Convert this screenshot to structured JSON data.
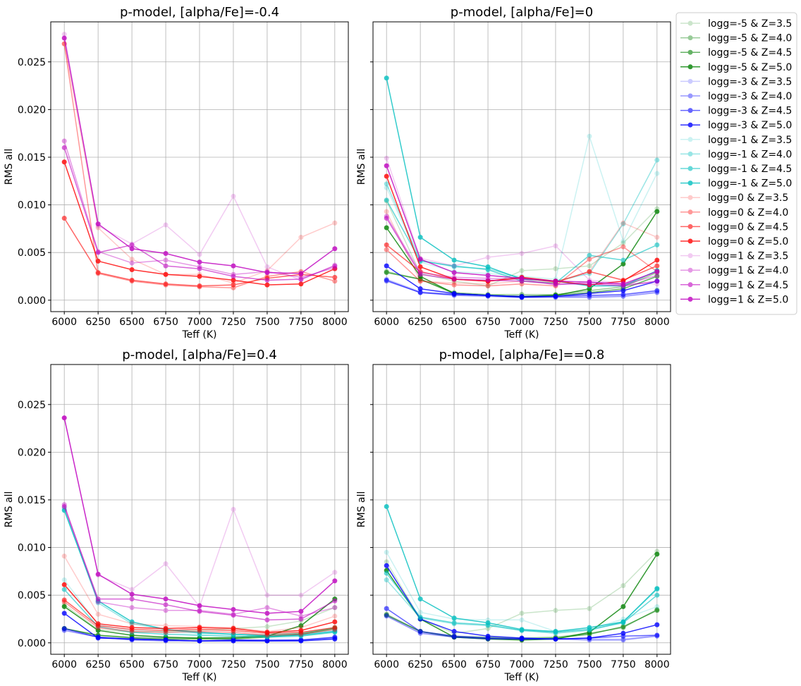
{
  "chart_data": [
    {
      "type": "line",
      "title": "p-model, [alpha/Fe]=-0.4",
      "xlabel": "Teff (K)",
      "ylabel": "RMS all",
      "x": [
        6000,
        6250,
        6500,
        6750,
        7000,
        7250,
        7500,
        7750,
        8000
      ],
      "xlim": [
        5900,
        8100
      ],
      "ylim": [
        -0.0012,
        0.0292
      ],
      "grid": true,
      "series": [
        {
          "name": "logg=0 & Z=3.5",
          "values": [
            0.0269,
            0.0076,
            0.0043,
            0.0027,
            0.0027,
            0.0018,
            0.0031,
            0.0066,
            0.0081
          ]
        },
        {
          "name": "logg=0 & Z=4.0",
          "values": [
            0.0269,
            0.0028,
            0.002,
            0.0016,
            0.0014,
            0.0013,
            0.0025,
            0.003,
            0.002
          ]
        },
        {
          "name": "logg=0 & Z=4.5",
          "values": [
            0.0086,
            0.0029,
            0.0021,
            0.0017,
            0.0015,
            0.0016,
            0.0023,
            0.0027,
            0.0024
          ]
        },
        {
          "name": "logg=0 & Z=5.0",
          "values": [
            0.0145,
            0.0041,
            0.0032,
            0.0027,
            0.0025,
            0.0021,
            0.0016,
            0.0017,
            0.0033
          ]
        },
        {
          "name": "logg=1 & Z=3.5",
          "values": [
            0.0279,
            0.0078,
            0.0059,
            0.0079,
            0.0048,
            0.0109,
            0.0035,
            0.0021,
            0.0037
          ]
        },
        {
          "name": "logg=1 & Z=4.0",
          "values": [
            0.0167,
            0.0051,
            0.0039,
            0.0042,
            0.0035,
            0.0027,
            0.003,
            0.0024,
            0.0034
          ]
        },
        {
          "name": "logg=1 & Z=4.5",
          "values": [
            0.016,
            0.005,
            0.0058,
            0.0036,
            0.0033,
            0.0025,
            0.0021,
            0.0022,
            0.0036
          ]
        },
        {
          "name": "logg=1 & Z=5.0",
          "values": [
            0.0275,
            0.008,
            0.0054,
            0.0049,
            0.004,
            0.0036,
            0.0029,
            0.0028,
            0.0054
          ]
        }
      ]
    },
    {
      "type": "line",
      "title": "p-model, [alpha/Fe]=0",
      "xlabel": "Teff (K)",
      "ylabel": "RMS all",
      "x": [
        6000,
        6250,
        6500,
        6750,
        7000,
        7250,
        7500,
        7750,
        8000
      ],
      "xlim": [
        5900,
        8100
      ],
      "ylim": [
        -0.0012,
        0.0292
      ],
      "grid": true,
      "series": [
        {
          "name": "logg=-5 & Z=3.5",
          "values": [
            0.0104,
            0.0028,
            0.002,
            0.0015,
            0.0031,
            0.0033,
            0.0036,
            0.006,
            0.0096
          ]
        },
        {
          "name": "logg=-5 & Z=4.0",
          "values": [
            0.003,
            0.0022,
            0.0008,
            0.0006,
            0.0006,
            0.0006,
            0.001,
            0.0014,
            0.0029
          ]
        },
        {
          "name": "logg=-5 & Z=4.5",
          "values": [
            0.0029,
            0.0022,
            0.0007,
            0.0005,
            0.0004,
            0.0005,
            0.0008,
            0.0012,
            0.0025
          ]
        },
        {
          "name": "logg=-5 & Z=5.0",
          "values": [
            0.0076,
            0.0025,
            0.0007,
            0.0005,
            0.0004,
            0.0005,
            0.0012,
            0.0038,
            0.0093
          ]
        },
        {
          "name": "logg=-3 & Z=3.5",
          "values": [
            0.0022,
            0.0009,
            0.0006,
            0.0005,
            0.0004,
            0.0004,
            0.0004,
            0.0005,
            0.0009
          ]
        },
        {
          "name": "logg=-3 & Z=4.0",
          "values": [
            0.002,
            0.0008,
            0.0005,
            0.0004,
            0.0003,
            0.0003,
            0.0003,
            0.0004,
            0.0008
          ]
        },
        {
          "name": "logg=-3 & Z=4.5",
          "values": [
            0.0021,
            0.0008,
            0.0006,
            0.0005,
            0.0004,
            0.0004,
            0.0005,
            0.0006,
            0.001
          ]
        },
        {
          "name": "logg=-3 & Z=5.0",
          "values": [
            0.0036,
            0.0012,
            0.0007,
            0.0005,
            0.0003,
            0.0004,
            0.0007,
            0.001,
            0.002
          ]
        },
        {
          "name": "logg=-1 & Z=3.5",
          "values": [
            0.0118,
            0.004,
            0.003,
            0.0028,
            0.0025,
            0.0022,
            0.0172,
            0.0062,
            0.0133
          ]
        },
        {
          "name": "logg=-1 & Z=4.0",
          "values": [
            0.0122,
            0.0042,
            0.0035,
            0.0033,
            0.0023,
            0.002,
            0.0028,
            0.008,
            0.0147
          ]
        },
        {
          "name": "logg=-1 & Z=4.5",
          "values": [
            0.0105,
            0.0041,
            0.0036,
            0.0032,
            0.002,
            0.0018,
            0.0047,
            0.0042,
            0.0058
          ]
        },
        {
          "name": "logg=-1 & Z=5.0",
          "values": [
            0.0233,
            0.0066,
            0.0042,
            0.0035,
            0.0022,
            0.002,
            0.0015,
            0.0015,
            0.0031
          ]
        },
        {
          "name": "logg=0 & Z=3.5",
          "values": [
            0.0093,
            0.002,
            0.0018,
            0.0017,
            0.002,
            0.0018,
            0.003,
            0.0081,
            0.0066
          ]
        },
        {
          "name": "logg=0 & Z=4.0",
          "values": [
            0.0053,
            0.002,
            0.0016,
            0.0015,
            0.0017,
            0.0015,
            0.0043,
            0.0056,
            0.003
          ]
        },
        {
          "name": "logg=0 & Z=4.5",
          "values": [
            0.0058,
            0.003,
            0.0022,
            0.002,
            0.0023,
            0.0019,
            0.003,
            0.0021,
            0.0036
          ]
        },
        {
          "name": "logg=0 & Z=5.0",
          "values": [
            0.013,
            0.0035,
            0.0022,
            0.002,
            0.0024,
            0.002,
            0.0016,
            0.002,
            0.0042
          ]
        },
        {
          "name": "logg=1 & Z=3.5",
          "values": [
            0.0149,
            0.0044,
            0.0036,
            0.0045,
            0.0049,
            0.0057,
            0.0021,
            0.0018,
            0.0017
          ]
        },
        {
          "name": "logg=1 & Z=4.0",
          "values": [
            0.0088,
            0.0029,
            0.0024,
            0.0023,
            0.0022,
            0.0016,
            0.0019,
            0.0016,
            0.0026
          ]
        },
        {
          "name": "logg=1 & Z=4.5",
          "values": [
            0.0086,
            0.0027,
            0.0022,
            0.0021,
            0.002,
            0.0017,
            0.0017,
            0.0015,
            0.002
          ]
        },
        {
          "name": "logg=1 & Z=5.0",
          "values": [
            0.0141,
            0.0043,
            0.0029,
            0.0026,
            0.0023,
            0.002,
            0.0019,
            0.0017,
            0.003
          ]
        }
      ]
    },
    {
      "type": "line",
      "title": "p-model, [alpha/Fe]=0.4",
      "xlabel": "Teff (K)",
      "ylabel": "RMS all",
      "x": [
        6000,
        6250,
        6500,
        6750,
        7000,
        7250,
        7500,
        7750,
        8000
      ],
      "xlim": [
        5900,
        8100
      ],
      "ylim": [
        -0.0012,
        0.0292
      ],
      "grid": true,
      "series": [
        {
          "name": "logg=-5 & Z=3.5",
          "values": [
            0.004,
            0.0014,
            0.0011,
            0.0012,
            0.0013,
            0.0015,
            0.0017,
            0.0023,
            0.0037
          ]
        },
        {
          "name": "logg=-5 & Z=4.0",
          "values": [
            0.0015,
            0.0008,
            0.0006,
            0.0005,
            0.0005,
            0.0006,
            0.0008,
            0.001,
            0.0016
          ]
        },
        {
          "name": "logg=-5 & Z=4.5",
          "values": [
            0.0015,
            0.0008,
            0.0005,
            0.0004,
            0.0004,
            0.0004,
            0.0006,
            0.0009,
            0.0015
          ]
        },
        {
          "name": "logg=-5 & Z=5.0",
          "values": [
            0.0038,
            0.0013,
            0.0008,
            0.0006,
            0.0005,
            0.0005,
            0.0007,
            0.0018,
            0.0046
          ]
        },
        {
          "name": "logg=-3 & Z=3.5",
          "values": [
            0.0014,
            0.0006,
            0.0003,
            0.0003,
            0.0002,
            0.0003,
            0.0002,
            0.0003,
            0.0006
          ]
        },
        {
          "name": "logg=-3 & Z=4.0",
          "values": [
            0.0013,
            0.0006,
            0.0003,
            0.0002,
            0.0002,
            0.0003,
            0.0002,
            0.0003,
            0.0005
          ]
        },
        {
          "name": "logg=-3 & Z=4.5",
          "values": [
            0.0015,
            0.0006,
            0.0004,
            0.0003,
            0.0002,
            0.0003,
            0.0003,
            0.0003,
            0.0006
          ]
        },
        {
          "name": "logg=-3 & Z=5.0",
          "values": [
            0.0031,
            0.0005,
            0.0004,
            0.0003,
            0.0002,
            0.0002,
            0.0002,
            0.0002,
            0.0004
          ]
        },
        {
          "name": "logg=-1 & Z=3.5",
          "values": [
            0.0066,
            0.0019,
            0.0013,
            0.0011,
            0.001,
            0.0009,
            0.0009,
            0.001,
            0.0015
          ]
        },
        {
          "name": "logg=-1 & Z=4.0",
          "values": [
            0.0141,
            0.0042,
            0.002,
            0.0014,
            0.001,
            0.0009,
            0.0008,
            0.0009,
            0.0013
          ]
        },
        {
          "name": "logg=-1 & Z=4.5",
          "values": [
            0.0056,
            0.0017,
            0.0011,
            0.0009,
            0.0008,
            0.0007,
            0.0006,
            0.0007,
            0.0011
          ]
        },
        {
          "name": "logg=-1 & Z=5.0",
          "values": [
            0.0139,
            0.0044,
            0.0022,
            0.0014,
            0.0011,
            0.0009,
            0.0007,
            0.0008,
            0.0012
          ]
        },
        {
          "name": "logg=0 & Z=3.5",
          "values": [
            0.0091,
            0.003,
            0.002,
            0.0018,
            0.0017,
            0.0016,
            0.0012,
            0.0016,
            0.0028
          ]
        },
        {
          "name": "logg=0 & Z=4.0",
          "values": [
            0.0043,
            0.0016,
            0.0012,
            0.0011,
            0.0012,
            0.0011,
            0.0008,
            0.0009,
            0.0014
          ]
        },
        {
          "name": "logg=0 & Z=4.5",
          "values": [
            0.0045,
            0.0018,
            0.0014,
            0.0013,
            0.0014,
            0.0013,
            0.001,
            0.0011,
            0.0016
          ]
        },
        {
          "name": "logg=0 & Z=5.0",
          "values": [
            0.0061,
            0.002,
            0.0016,
            0.0015,
            0.0016,
            0.0015,
            0.0011,
            0.0013,
            0.0022
          ]
        },
        {
          "name": "logg=1 & Z=3.5",
          "values": [
            0.0236,
            0.0071,
            0.0056,
            0.0083,
            0.0038,
            0.014,
            0.005,
            0.005,
            0.0074
          ]
        },
        {
          "name": "logg=1 & Z=4.0",
          "values": [
            0.0145,
            0.0043,
            0.0037,
            0.0034,
            0.0034,
            0.003,
            0.0037,
            0.0028,
            0.0037
          ]
        },
        {
          "name": "logg=1 & Z=4.5",
          "values": [
            0.0143,
            0.0046,
            0.0046,
            0.004,
            0.0033,
            0.0029,
            0.0024,
            0.0025,
            0.0044
          ]
        },
        {
          "name": "logg=1 & Z=5.0",
          "values": [
            0.0236,
            0.0072,
            0.0051,
            0.0046,
            0.0039,
            0.0035,
            0.0031,
            0.0033,
            0.0065
          ]
        }
      ]
    },
    {
      "type": "line",
      "title": "p-model, [alpha/Fe]==0.8",
      "xlabel": "Teff (K)",
      "ylabel": "RMS all",
      "x": [
        6000,
        6250,
        6500,
        6750,
        7000,
        7250,
        7500,
        7750,
        8000
      ],
      "xlim": [
        5900,
        8100
      ],
      "ylim": [
        -0.0012,
        0.0292
      ],
      "grid": true,
      "series": [
        {
          "name": "logg=-5 & Z=3.5",
          "values": [
            0.0085,
            0.0025,
            0.001,
            0.0015,
            0.0031,
            0.0034,
            0.0036,
            0.006,
            0.0096
          ]
        },
        {
          "name": "logg=-5 & Z=4.0",
          "values": [
            0.003,
            0.0012,
            0.0007,
            0.0006,
            0.0005,
            0.0006,
            0.001,
            0.0016,
            0.0035
          ]
        },
        {
          "name": "logg=-5 & Z=4.5",
          "values": [
            0.0029,
            0.0012,
            0.0006,
            0.0005,
            0.0004,
            0.0005,
            0.0009,
            0.0017,
            0.0034
          ]
        },
        {
          "name": "logg=-5 & Z=5.0",
          "values": [
            0.0076,
            0.0025,
            0.0006,
            0.0004,
            0.0003,
            0.0004,
            0.0011,
            0.0038,
            0.0093
          ]
        },
        {
          "name": "logg=-3 & Z=3.5",
          "values": [
            0.0029,
            0.0011,
            0.0006,
            0.0005,
            0.0004,
            0.0004,
            0.0004,
            0.0004,
            0.0008
          ]
        },
        {
          "name": "logg=-3 & Z=4.0",
          "values": [
            0.0028,
            0.001,
            0.0006,
            0.0004,
            0.0004,
            0.0004,
            0.0003,
            0.0003,
            0.0007
          ]
        },
        {
          "name": "logg=-3 & Z=4.5",
          "values": [
            0.0036,
            0.0012,
            0.0007,
            0.0005,
            0.0004,
            0.0004,
            0.0005,
            0.0007,
            0.0008
          ]
        },
        {
          "name": "logg=-3 & Z=5.0",
          "values": [
            0.0081,
            0.0025,
            0.0012,
            0.0007,
            0.0005,
            0.0004,
            0.0005,
            0.001,
            0.0019
          ]
        },
        {
          "name": "logg=-1 & Z=3.5",
          "values": [
            0.0095,
            0.0032,
            0.0025,
            0.0024,
            0.0024,
            0.0012,
            0.0014,
            0.0025,
            0.0038
          ]
        },
        {
          "name": "logg=-1 & Z=4.0",
          "values": [
            0.0066,
            0.0026,
            0.002,
            0.0018,
            0.0013,
            0.001,
            0.0013,
            0.0022,
            0.0056
          ]
        },
        {
          "name": "logg=-1 & Z=4.5",
          "values": [
            0.0073,
            0.0027,
            0.0021,
            0.0019,
            0.0013,
            0.0011,
            0.0014,
            0.0021,
            0.005
          ]
        },
        {
          "name": "logg=-1 & Z=5.0",
          "values": [
            0.0143,
            0.0046,
            0.0026,
            0.0021,
            0.0014,
            0.0012,
            0.0016,
            0.0022,
            0.0057
          ]
        }
      ]
    }
  ],
  "legend": {
    "placement": "right of top-right panel",
    "entries": [
      "logg=-5 & Z=3.5",
      "logg=-5 & Z=4.0",
      "logg=-5 & Z=4.5",
      "logg=-5 & Z=5.0",
      "logg=-3 & Z=3.5",
      "logg=-3 & Z=4.0",
      "logg=-3 & Z=4.5",
      "logg=-3 & Z=5.0",
      "logg=-1 & Z=3.5",
      "logg=-1 & Z=4.0",
      "logg=-1 & Z=4.5",
      "logg=-1 & Z=5.0",
      "logg=0 & Z=3.5",
      "logg=0 & Z=4.0",
      "logg=0 & Z=4.5",
      "logg=0 & Z=5.0",
      "logg=1 & Z=3.5",
      "logg=1 & Z=4.0",
      "logg=1 & Z=4.5",
      "logg=1 & Z=5.0"
    ]
  },
  "colors": {
    "logg=-5": "#008000",
    "logg=-3": "#0000ff",
    "logg=-1": "#00bfbf",
    "logg=0": "#ff0000",
    "logg=1": "#bf00bf",
    "Z=3.5_opacity": 0.2,
    "Z=4.0_opacity": 0.4,
    "Z=4.5_opacity": 0.6,
    "Z=5.0_opacity": 0.8,
    "grid": "#b0b0b0"
  },
  "y_ticks": [
    "0.000",
    "0.005",
    "0.010",
    "0.015",
    "0.020",
    "0.025"
  ],
  "x_ticks": [
    "6000",
    "6250",
    "6500",
    "6750",
    "7000",
    "7250",
    "7500",
    "7750",
    "8000"
  ]
}
